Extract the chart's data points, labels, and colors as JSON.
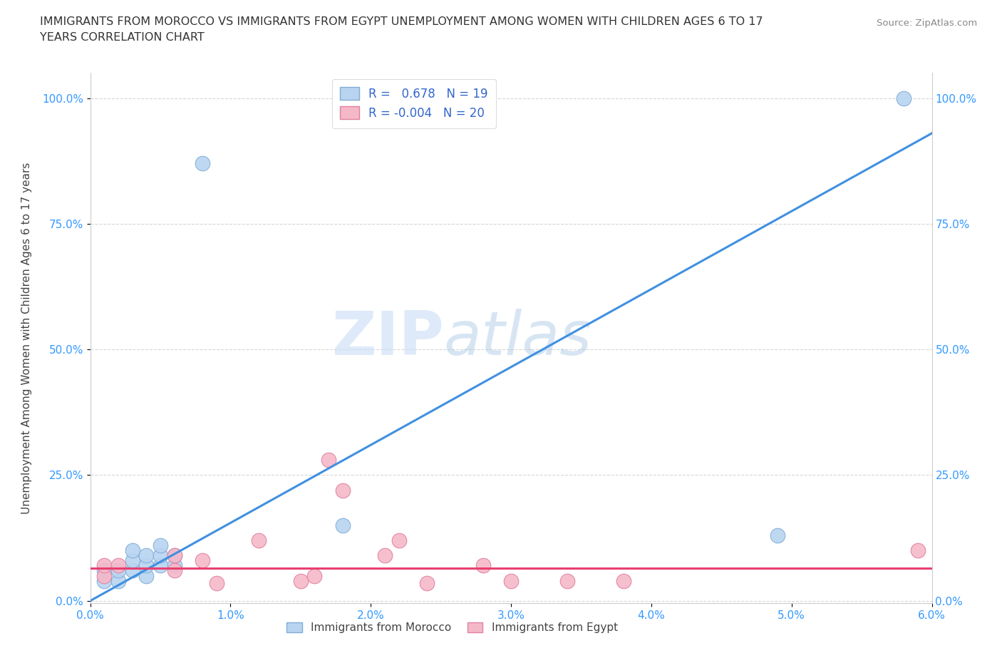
{
  "title_line1": "IMMIGRANTS FROM MOROCCO VS IMMIGRANTS FROM EGYPT UNEMPLOYMENT AMONG WOMEN WITH CHILDREN AGES 6 TO 17",
  "title_line2": "YEARS CORRELATION CHART",
  "source": "Source: ZipAtlas.com",
  "ylabel": "Unemployment Among Women with Children Ages 6 to 17 years",
  "xlim": [
    0.0,
    0.06
  ],
  "ylim": [
    -0.005,
    1.05
  ],
  "xticks": [
    0.0,
    0.01,
    0.02,
    0.03,
    0.04,
    0.05,
    0.06
  ],
  "xticklabels": [
    "0.0%",
    "1.0%",
    "2.0%",
    "3.0%",
    "4.0%",
    "5.0%",
    "6.0%"
  ],
  "yticks": [
    0.0,
    0.25,
    0.5,
    0.75,
    1.0
  ],
  "yticklabels": [
    "0.0%",
    "25.0%",
    "50.0%",
    "75.0%",
    "100.0%"
  ],
  "morocco_color": "#b8d4f0",
  "morocco_edge": "#80acd8",
  "egypt_color": "#f5b8c8",
  "egypt_edge": "#e080a0",
  "line_morocco_color": "#4090e0",
  "line_egypt_color": "#e84070",
  "watermark_zip": "ZIP",
  "watermark_atlas": "atlas",
  "legend_morocco_R": "0.678",
  "legend_morocco_N": "19",
  "legend_egypt_R": "-0.004",
  "legend_egypt_N": "20",
  "morocco_x": [
    0.001,
    0.001,
    0.002,
    0.002,
    0.003,
    0.003,
    0.003,
    0.004,
    0.004,
    0.004,
    0.005,
    0.005,
    0.005,
    0.006,
    0.006,
    0.008,
    0.018,
    0.049,
    0.058
  ],
  "morocco_y": [
    0.04,
    0.06,
    0.04,
    0.06,
    0.06,
    0.08,
    0.1,
    0.05,
    0.07,
    0.09,
    0.07,
    0.09,
    0.11,
    0.07,
    0.09,
    0.87,
    0.15,
    0.13,
    1.0
  ],
  "egypt_x": [
    0.001,
    0.001,
    0.002,
    0.006,
    0.006,
    0.008,
    0.009,
    0.012,
    0.015,
    0.016,
    0.017,
    0.018,
    0.021,
    0.022,
    0.024,
    0.028,
    0.03,
    0.034,
    0.038,
    0.059
  ],
  "egypt_y": [
    0.05,
    0.07,
    0.07,
    0.06,
    0.09,
    0.08,
    0.035,
    0.12,
    0.04,
    0.05,
    0.28,
    0.22,
    0.09,
    0.12,
    0.035,
    0.07,
    0.04,
    0.04,
    0.04,
    0.1
  ],
  "morocco_trend_x": [
    0.0,
    0.06
  ],
  "morocco_trend_y": [
    0.0,
    0.93
  ],
  "egypt_trend_x": [
    0.0,
    0.06
  ],
  "egypt_trend_y": [
    0.065,
    0.065
  ]
}
